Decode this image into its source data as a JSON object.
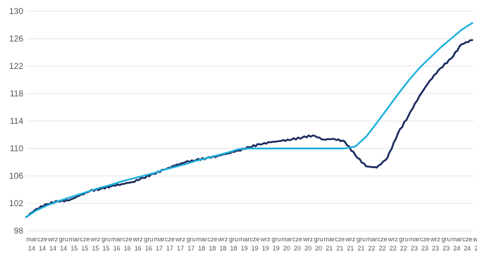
{
  "chart_data": {
    "type": "line",
    "title": "",
    "xlabel": "",
    "ylabel": "",
    "ylim": [
      98,
      130
    ],
    "yticks": [
      98,
      102,
      106,
      110,
      114,
      118,
      122,
      126,
      130
    ],
    "grid": true,
    "legend": "none",
    "x_categories": [
      {
        "month": "mar",
        "year": "14"
      },
      {
        "month": "cze",
        "year": "14"
      },
      {
        "month": "wrz",
        "year": "14"
      },
      {
        "month": "gru",
        "year": "14"
      },
      {
        "month": "mar",
        "year": "15"
      },
      {
        "month": "cze",
        "year": "15"
      },
      {
        "month": "wrz",
        "year": "15"
      },
      {
        "month": "gru",
        "year": "15"
      },
      {
        "month": "mar",
        "year": "16"
      },
      {
        "month": "cze",
        "year": "16"
      },
      {
        "month": "wrz",
        "year": "16"
      },
      {
        "month": "gru",
        "year": "16"
      },
      {
        "month": "mar",
        "year": "17"
      },
      {
        "month": "cze",
        "year": "17"
      },
      {
        "month": "wrz",
        "year": "17"
      },
      {
        "month": "gru",
        "year": "17"
      },
      {
        "month": "mar",
        "year": "18"
      },
      {
        "month": "cze",
        "year": "18"
      },
      {
        "month": "wrz",
        "year": "18"
      },
      {
        "month": "gru",
        "year": "18"
      },
      {
        "month": "mar",
        "year": "19"
      },
      {
        "month": "cze",
        "year": "19"
      },
      {
        "month": "wrz",
        "year": "19"
      },
      {
        "month": "gru",
        "year": "19"
      },
      {
        "month": "mar",
        "year": "20"
      },
      {
        "month": "cze",
        "year": "20"
      },
      {
        "month": "wrz",
        "year": "20"
      },
      {
        "month": "gru",
        "year": "20"
      },
      {
        "month": "mar",
        "year": "21"
      },
      {
        "month": "cze",
        "year": "21"
      },
      {
        "month": "wrz",
        "year": "21"
      },
      {
        "month": "gru",
        "year": "21"
      },
      {
        "month": "mar",
        "year": "22"
      },
      {
        "month": "cze",
        "year": "22"
      },
      {
        "month": "wrz",
        "year": "22"
      },
      {
        "month": "gru",
        "year": "22"
      },
      {
        "month": "mar",
        "year": "23"
      },
      {
        "month": "cze",
        "year": "23"
      },
      {
        "month": "wrz",
        "year": "23"
      },
      {
        "month": "gru",
        "year": "23"
      },
      {
        "month": "mar",
        "year": "24"
      },
      {
        "month": "cze",
        "year": "24"
      },
      {
        "month": "wrz",
        "year": "24"
      }
    ],
    "series": [
      {
        "color": "#1a2a5e",
        "values": [
          100.0,
          101.2,
          101.9,
          102.3,
          102.4,
          103.1,
          103.8,
          104.1,
          104.5,
          104.8,
          105.1,
          105.7,
          106.3,
          106.9,
          107.5,
          108.0,
          108.3,
          108.6,
          108.9,
          109.3,
          109.7,
          110.2,
          110.6,
          110.9,
          111.1,
          111.3,
          111.6,
          111.9,
          111.3,
          111.4,
          111.0,
          109.0,
          107.4,
          107.2,
          108.6,
          112.2,
          114.8,
          117.6,
          119.9,
          121.7,
          123.1,
          125.2,
          125.8
        ]
      },
      {
        "color": "#1aaedc",
        "values": [
          100.0,
          101.0,
          101.7,
          102.3,
          102.8,
          103.3,
          103.8,
          104.3,
          104.7,
          105.2,
          105.6,
          106.0,
          106.4,
          106.9,
          107.3,
          107.7,
          108.2,
          108.6,
          109.0,
          109.4,
          109.9,
          110.0,
          110.0,
          110.0,
          110.0,
          110.0,
          110.0,
          110.0,
          110.0,
          110.0,
          110.0,
          110.3,
          111.7,
          113.7,
          115.8,
          117.9,
          119.9,
          121.7,
          123.2,
          124.7,
          126.0,
          127.3,
          128.3
        ]
      }
    ]
  }
}
